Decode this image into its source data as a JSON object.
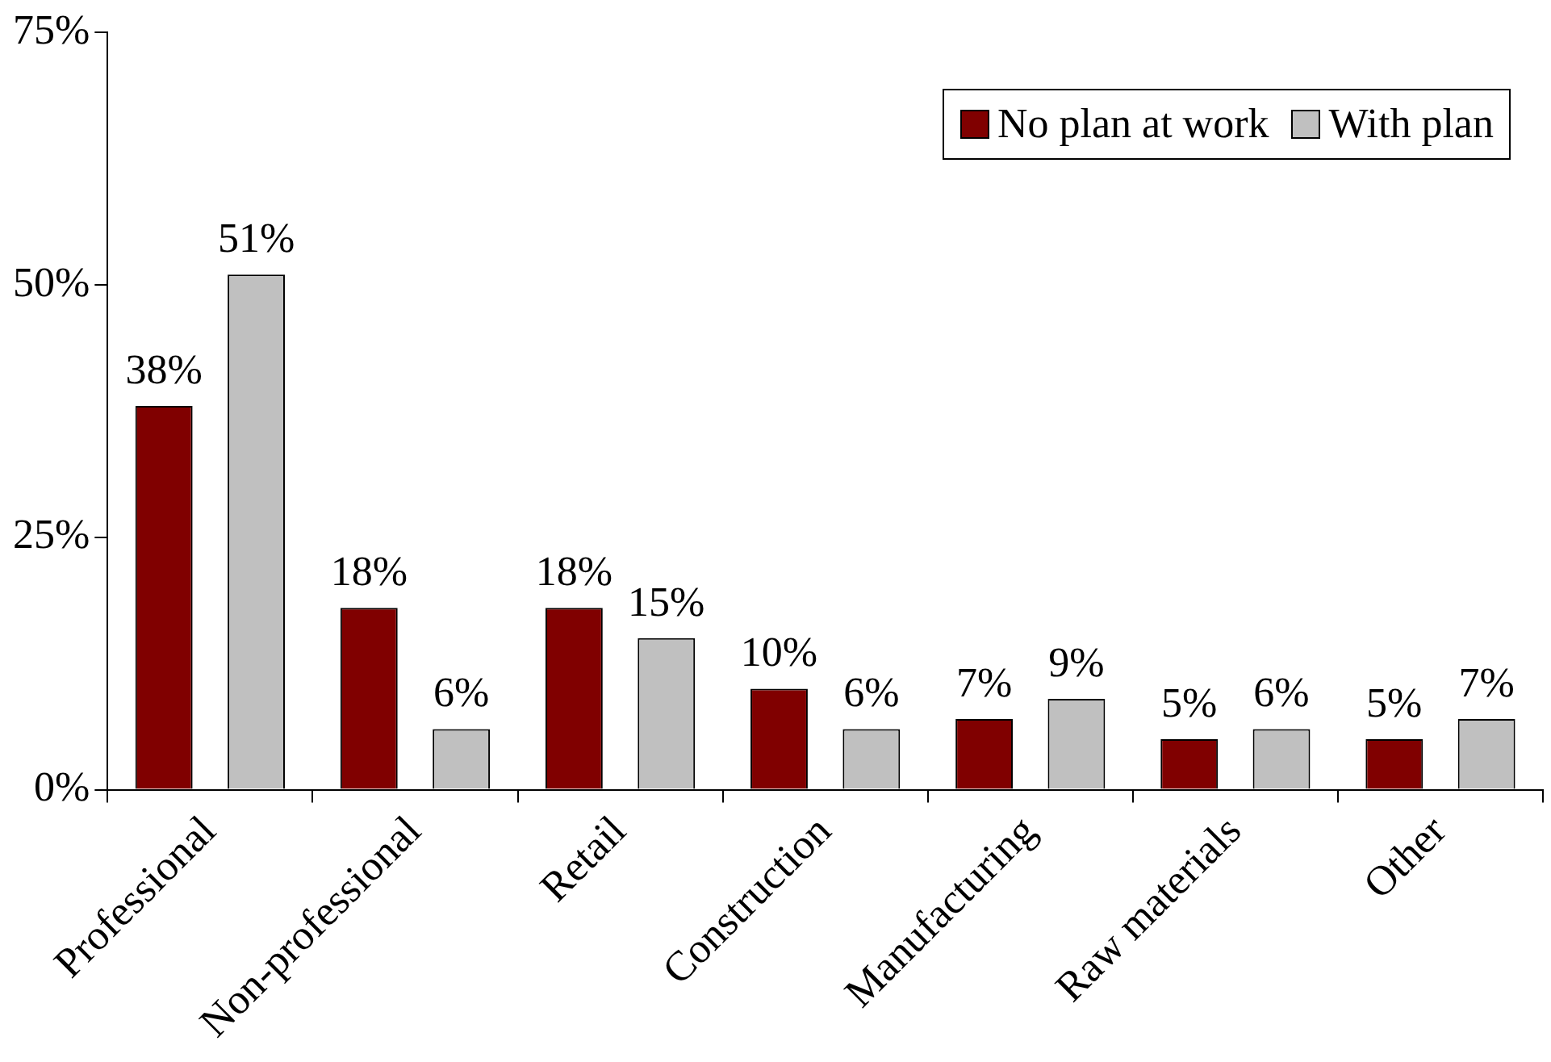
{
  "chart_data": {
    "type": "bar",
    "categories": [
      "Professional",
      "Non-professional",
      "Retail",
      "Construction",
      "Manufacturing",
      "Raw materials",
      "Other"
    ],
    "series": [
      {
        "name": "No plan at work",
        "color": "#800000",
        "values": [
          38,
          18,
          18,
          10,
          7,
          5,
          5
        ],
        "value_labels": [
          "38%",
          "18%",
          "18%",
          "10%",
          "7%",
          "5%",
          "5%"
        ]
      },
      {
        "name": "With plan",
        "color": "#c0c0c0",
        "values": [
          51,
          6,
          15,
          6,
          9,
          6,
          7
        ],
        "value_labels": [
          "51%",
          "6%",
          "15%",
          "6%",
          "9%",
          "6%",
          "7%"
        ]
      }
    ],
    "ylim": [
      0,
      75
    ],
    "yticks": [
      {
        "value": 0,
        "label": "0%"
      },
      {
        "value": 25,
        "label": "25%"
      },
      {
        "value": 50,
        "label": "50%"
      },
      {
        "value": 75,
        "label": "75%"
      }
    ],
    "grid": false,
    "legend": "top right"
  }
}
